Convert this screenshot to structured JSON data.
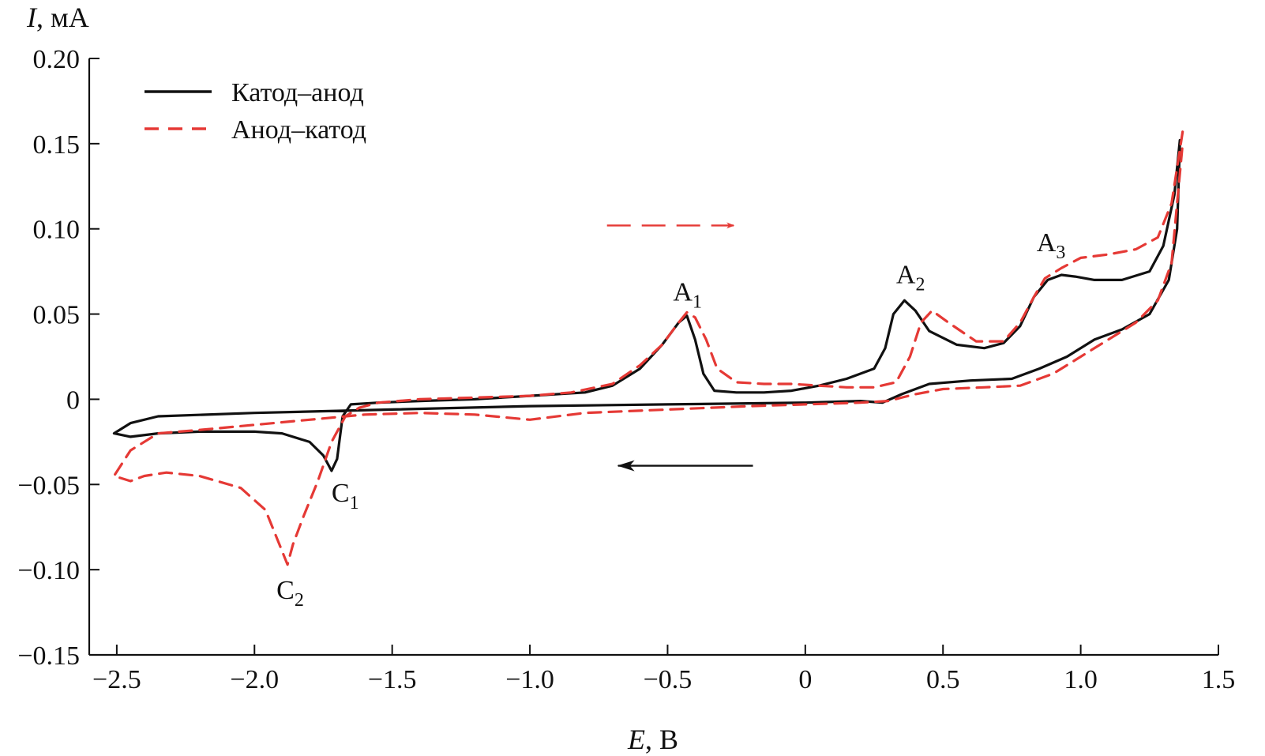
{
  "chart_data": {
    "type": "line",
    "xlabel": {
      "var": "E",
      "unit": ", В"
    },
    "ylabel": {
      "var": "I",
      "unit": ", мА"
    },
    "xlim": [
      -2.6,
      1.5
    ],
    "ylim": [
      -0.15,
      0.2
    ],
    "x_ticks": [
      -2.5,
      -2.0,
      -1.5,
      -1.0,
      -0.5,
      0,
      0.5,
      1.0,
      1.5
    ],
    "x_tick_labels": [
      "−2.5",
      "−2.0",
      "−1.5",
      "−1.0",
      "−0.5",
      "0",
      "0.5",
      "1.0",
      "1.5"
    ],
    "y_ticks": [
      0.2,
      0.15,
      0.1,
      0.05,
      0,
      -0.05,
      -0.1,
      -0.15
    ],
    "y_tick_labels": [
      "0.20",
      "0.15",
      "0.10",
      "0.05",
      "0",
      "−0.05",
      "−0.10",
      "−0.15"
    ],
    "grid": false,
    "legend_position": "top-left",
    "series": [
      {
        "name": "Катод–анод",
        "color": "#111111",
        "style": "solid",
        "points": [
          [
            1.36,
            0.152
          ],
          [
            1.34,
            0.12
          ],
          [
            1.3,
            0.09
          ],
          [
            1.25,
            0.075
          ],
          [
            1.15,
            0.07
          ],
          [
            1.05,
            0.07
          ],
          [
            0.98,
            0.072
          ],
          [
            0.93,
            0.073
          ],
          [
            0.88,
            0.07
          ],
          [
            0.83,
            0.06
          ],
          [
            0.78,
            0.043
          ],
          [
            0.72,
            0.033
          ],
          [
            0.65,
            0.03
          ],
          [
            0.55,
            0.032
          ],
          [
            0.45,
            0.04
          ],
          [
            0.4,
            0.052
          ],
          [
            0.36,
            0.058
          ],
          [
            0.32,
            0.05
          ],
          [
            0.29,
            0.03
          ],
          [
            0.25,
            0.018
          ],
          [
            0.15,
            0.012
          ],
          [
            0.05,
            0.008
          ],
          [
            -0.05,
            0.005
          ],
          [
            -0.15,
            0.004
          ],
          [
            -0.25,
            0.004
          ],
          [
            -0.33,
            0.005
          ],
          [
            -0.37,
            0.015
          ],
          [
            -0.4,
            0.035
          ],
          [
            -0.43,
            0.049
          ],
          [
            -0.46,
            0.045
          ],
          [
            -0.52,
            0.032
          ],
          [
            -0.6,
            0.018
          ],
          [
            -0.7,
            0.008
          ],
          [
            -0.8,
            0.004
          ],
          [
            -1.0,
            0.002
          ],
          [
            -1.2,
            0.0
          ],
          [
            -1.4,
            -0.001
          ],
          [
            -1.55,
            -0.002
          ],
          [
            -1.65,
            -0.003
          ],
          [
            -1.68,
            -0.01
          ],
          [
            -1.7,
            -0.035
          ],
          [
            -1.72,
            -0.042
          ],
          [
            -1.75,
            -0.033
          ],
          [
            -1.8,
            -0.025
          ],
          [
            -1.9,
            -0.02
          ],
          [
            -2.0,
            -0.019
          ],
          [
            -2.2,
            -0.019
          ],
          [
            -2.35,
            -0.02
          ],
          [
            -2.45,
            -0.022
          ],
          [
            -2.51,
            -0.02
          ],
          [
            -2.45,
            -0.014
          ],
          [
            -2.35,
            -0.01
          ],
          [
            -2.0,
            -0.008
          ],
          [
            -1.5,
            -0.006
          ],
          [
            -1.0,
            -0.004
          ],
          [
            -0.5,
            -0.003
          ],
          [
            0.0,
            -0.002
          ],
          [
            0.2,
            -0.001
          ],
          [
            0.28,
            -0.002
          ],
          [
            0.35,
            0.003
          ],
          [
            0.45,
            0.009
          ],
          [
            0.6,
            0.011
          ],
          [
            0.75,
            0.012
          ],
          [
            0.85,
            0.018
          ],
          [
            0.95,
            0.025
          ],
          [
            1.05,
            0.035
          ],
          [
            1.15,
            0.041
          ],
          [
            1.25,
            0.05
          ],
          [
            1.32,
            0.07
          ],
          [
            1.35,
            0.1
          ],
          [
            1.36,
            0.15
          ]
        ]
      },
      {
        "name": "Анод–катод",
        "color": "#e53935",
        "style": "dashed",
        "points": [
          [
            1.37,
            0.157
          ],
          [
            1.33,
            0.115
          ],
          [
            1.28,
            0.095
          ],
          [
            1.2,
            0.088
          ],
          [
            1.1,
            0.085
          ],
          [
            1.0,
            0.083
          ],
          [
            0.93,
            0.077
          ],
          [
            0.87,
            0.071
          ],
          [
            0.83,
            0.06
          ],
          [
            0.78,
            0.045
          ],
          [
            0.72,
            0.034
          ],
          [
            0.62,
            0.034
          ],
          [
            0.52,
            0.045
          ],
          [
            0.46,
            0.052
          ],
          [
            0.42,
            0.045
          ],
          [
            0.38,
            0.025
          ],
          [
            0.33,
            0.01
          ],
          [
            0.25,
            0.007
          ],
          [
            0.15,
            0.007
          ],
          [
            0.05,
            0.008
          ],
          [
            -0.05,
            0.009
          ],
          [
            -0.15,
            0.009
          ],
          [
            -0.25,
            0.01
          ],
          [
            -0.32,
            0.018
          ],
          [
            -0.36,
            0.035
          ],
          [
            -0.4,
            0.048
          ],
          [
            -0.43,
            0.051
          ],
          [
            -0.46,
            0.045
          ],
          [
            -0.52,
            0.032
          ],
          [
            -0.6,
            0.02
          ],
          [
            -0.7,
            0.009
          ],
          [
            -0.85,
            0.004
          ],
          [
            -1.0,
            0.002
          ],
          [
            -1.2,
            0.001
          ],
          [
            -1.4,
            0.0
          ],
          [
            -1.55,
            -0.002
          ],
          [
            -1.62,
            -0.005
          ],
          [
            -1.67,
            -0.01
          ],
          [
            -1.72,
            -0.025
          ],
          [
            -1.77,
            -0.048
          ],
          [
            -1.82,
            -0.068
          ],
          [
            -1.86,
            -0.085
          ],
          [
            -1.88,
            -0.097
          ],
          [
            -1.91,
            -0.085
          ],
          [
            -1.96,
            -0.065
          ],
          [
            -2.05,
            -0.052
          ],
          [
            -2.2,
            -0.045
          ],
          [
            -2.32,
            -0.043
          ],
          [
            -2.4,
            -0.045
          ],
          [
            -2.45,
            -0.048
          ],
          [
            -2.51,
            -0.045
          ],
          [
            -2.45,
            -0.03
          ],
          [
            -2.35,
            -0.02
          ],
          [
            -2.2,
            -0.018
          ],
          [
            -2.0,
            -0.015
          ],
          [
            -1.8,
            -0.012
          ],
          [
            -1.6,
            -0.009
          ],
          [
            -1.4,
            -0.008
          ],
          [
            -1.2,
            -0.009
          ],
          [
            -1.0,
            -0.012
          ],
          [
            -0.8,
            -0.008
          ],
          [
            -0.5,
            -0.006
          ],
          [
            -0.2,
            -0.004
          ],
          [
            0.0,
            -0.003
          ],
          [
            0.2,
            -0.002
          ],
          [
            0.3,
            -0.001
          ],
          [
            0.4,
            0.003
          ],
          [
            0.5,
            0.006
          ],
          [
            0.65,
            0.007
          ],
          [
            0.78,
            0.008
          ],
          [
            0.9,
            0.015
          ],
          [
            1.0,
            0.025
          ],
          [
            1.1,
            0.035
          ],
          [
            1.2,
            0.045
          ],
          [
            1.28,
            0.058
          ],
          [
            1.33,
            0.08
          ],
          [
            1.37,
            0.15
          ]
        ]
      }
    ],
    "annotations": [
      {
        "main": "A",
        "sub": "1",
        "x": -0.48,
        "y": 0.058
      },
      {
        "main": "A",
        "sub": "2",
        "x": 0.33,
        "y": 0.068
      },
      {
        "main": "A",
        "sub": "3",
        "x": 0.84,
        "y": 0.087
      },
      {
        "main": "C",
        "sub": "1",
        "x": -1.72,
        "y": -0.06
      },
      {
        "main": "C",
        "sub": "2",
        "x": -1.92,
        "y": -0.117
      }
    ],
    "direction_arrows": [
      {
        "color": "#e53935",
        "style": "dashed",
        "from": [
          -0.72,
          0.102
        ],
        "to": [
          -0.26,
          0.102
        ]
      },
      {
        "color": "#111111",
        "style": "solid",
        "from": [
          -0.19,
          -0.039
        ],
        "to": [
          -0.68,
          -0.039
        ]
      }
    ]
  }
}
